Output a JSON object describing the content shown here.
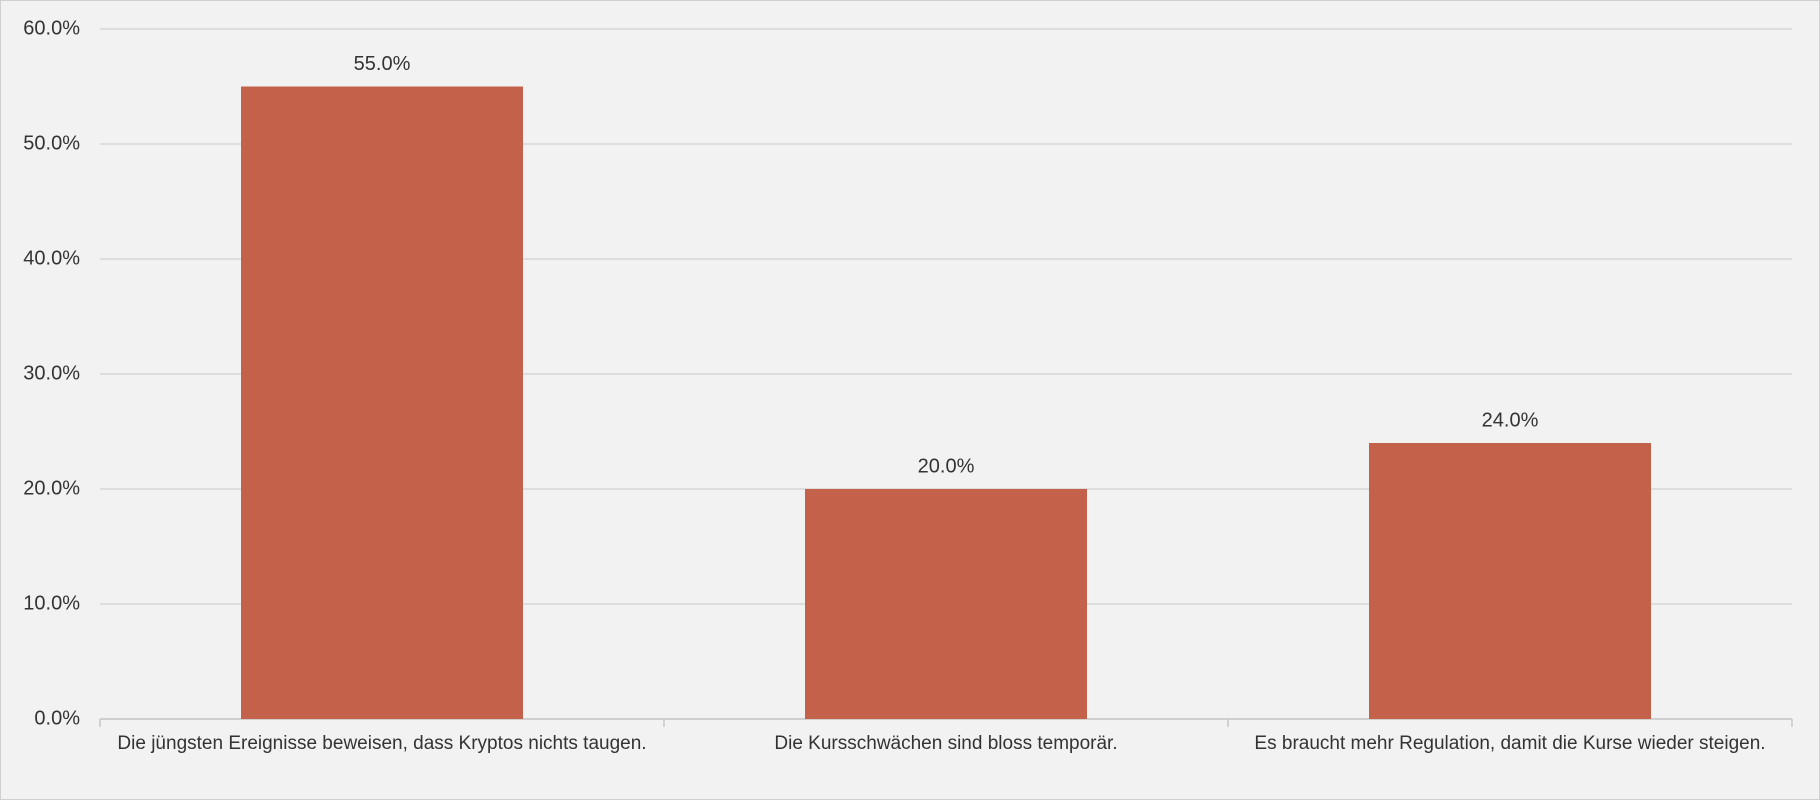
{
  "chart_data": {
    "type": "bar",
    "categories": [
      "Die jüngsten Ereignisse beweisen, dass Kryptos nichts taugen.",
      "Die Kursschwächen sind bloss temporär.",
      "Es braucht mehr Regulation, damit die Kurse wieder steigen."
    ],
    "values": [
      55,
      20,
      24
    ],
    "value_labels": [
      "55.0%",
      "20.0%",
      "24.0%"
    ],
    "color": "#c4614a",
    "ylim": [
      0,
      60
    ],
    "yticks": [
      {
        "value": 0,
        "label": "0.0%"
      },
      {
        "value": 10,
        "label": "10.0%"
      },
      {
        "value": 20,
        "label": "20.0%"
      },
      {
        "value": 30,
        "label": "30.0%"
      },
      {
        "value": 40,
        "label": "40.0%"
      },
      {
        "value": 50,
        "label": "50.0%"
      },
      {
        "value": 60,
        "label": "60.0%"
      }
    ],
    "grid": true
  }
}
